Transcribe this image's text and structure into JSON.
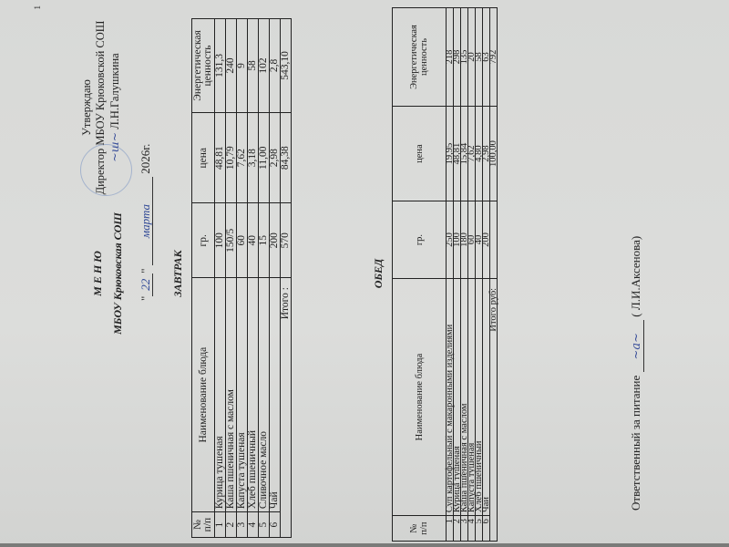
{
  "page_number": "1",
  "approval": {
    "line1": "Утверждаю",
    "line2": "Директор МБОУ Крюковской СОШ",
    "line3": "Л.Н.Галушкина"
  },
  "header": {
    "title": "М Е Н Ю",
    "school": "МБОУ Крюковская СОШ",
    "date_quote_open": "\"",
    "date_day": "22",
    "date_quote_close": "\"",
    "date_month": "марта",
    "date_year": "2026г."
  },
  "columns": [
    "№ п/п",
    "Наименование блюда",
    "гр.",
    "цена",
    "Энергетическая ценность"
  ],
  "breakfast": {
    "title": "ЗАВТРАК",
    "rows": [
      [
        "1",
        "Курица тушеная",
        "100",
        "48,81",
        "131,3"
      ],
      [
        "2",
        "Каша пшеничная с маслом",
        "150/5",
        "10,79",
        "240"
      ],
      [
        "3",
        "Капуста тушеная",
        "60",
        "7,62",
        "9"
      ],
      [
        "4",
        "Хлеб пшеничный",
        "40",
        "3,18",
        "58"
      ],
      [
        "5",
        "Сливочное масло",
        "15",
        "11,00",
        "102"
      ],
      [
        "6",
        "Чай",
        "200",
        "2,98",
        "2,8"
      ]
    ],
    "total": [
      "Итого :",
      "570",
      "84,38",
      "543,10"
    ]
  },
  "lunch": {
    "title": "ОБЕД",
    "rows": [
      [
        "1",
        "Суп картофельный с макаронными изделиями",
        "250",
        "19,95",
        "218"
      ],
      [
        "2",
        "Курица тушеная",
        "100",
        "48,81",
        "298"
      ],
      [
        "3",
        "Каша пшеничная с маслом",
        "180",
        "15,84",
        "135"
      ],
      [
        "4",
        "Капуста тушеная",
        "60",
        "7,62",
        "20"
      ],
      [
        "5",
        "Хлеб пшеничный",
        "40",
        "4,80",
        "58"
      ],
      [
        "6",
        "Чай",
        "200",
        "2,98",
        "63"
      ]
    ],
    "total": [
      "Итого руб:",
      "",
      "100,00",
      "792"
    ]
  },
  "footer": {
    "label": "Ответственный за питание",
    "name": "( Л.И.Аксенова)"
  },
  "colors": {
    "ink_handwriting": "#2f4896",
    "stamp": "#8da3c8"
  }
}
